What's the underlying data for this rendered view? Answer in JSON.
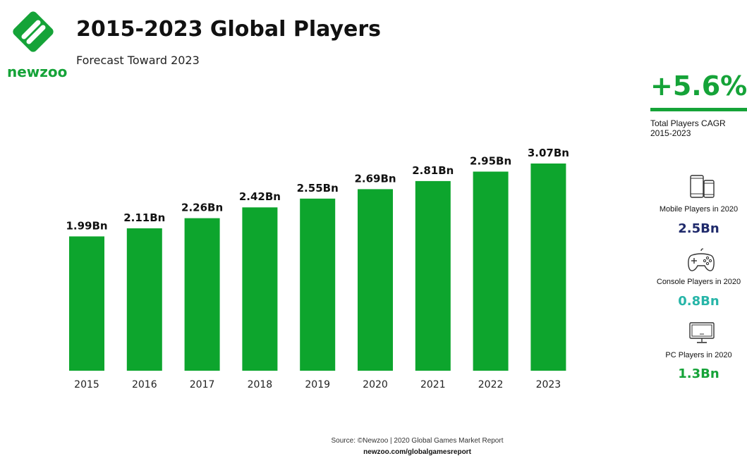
{
  "brand": {
    "name": "newzoo",
    "color": "#15a338"
  },
  "header": {
    "title": "2015-2023 Global Players",
    "subtitle": "Forecast Toward 2023"
  },
  "chart_data": {
    "type": "bar",
    "categories": [
      "2015",
      "2016",
      "2017",
      "2018",
      "2019",
      "2020",
      "2021",
      "2022",
      "2023"
    ],
    "values": [
      1.99,
      2.11,
      2.26,
      2.42,
      2.55,
      2.69,
      2.81,
      2.95,
      3.07
    ],
    "value_labels": [
      "1.99Bn",
      "2.11Bn",
      "2.26Bn",
      "2.42Bn",
      "2.55Bn",
      "2.69Bn",
      "2.81Bn",
      "2.95Bn",
      "3.07Bn"
    ],
    "unit": "Bn",
    "title": "2015-2023 Global Players",
    "subtitle": "Forecast Toward 2023",
    "ylim": [
      0,
      3.4
    ],
    "grid": false,
    "bar_color": "#0da52d"
  },
  "sidebar": {
    "cagr": {
      "value": "+5.6%",
      "label_line1": "Total Players CAGR",
      "label_line2": "2015-2023"
    },
    "stats": [
      {
        "icon": "mobile-devices-icon",
        "label": "Mobile Players in 2020",
        "value": "2.5Bn",
        "color": "#1f2a6b"
      },
      {
        "icon": "gamepad-icon",
        "label": "Console Players in 2020",
        "value": "0.8Bn",
        "color": "#27b5a8"
      },
      {
        "icon": "pc-monitor-icon",
        "label": "PC Players in 2020",
        "value": "1.3Bn",
        "color": "#15a338"
      }
    ]
  },
  "footer": {
    "source": "Source: ©Newzoo | 2020 Global Games Market Report",
    "url": "newzoo.com/globalgamesreport"
  }
}
